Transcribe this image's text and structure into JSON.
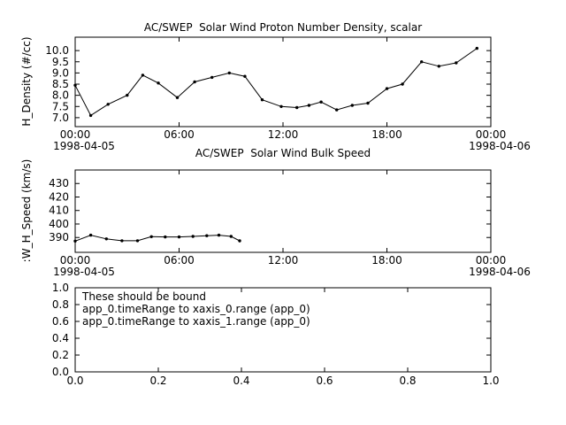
{
  "colors": {
    "background": "#ffffff",
    "foreground": "#000000"
  },
  "chart_data": [
    {
      "type": "line",
      "title": "AC/SWEP  Solar Wind Proton Number Density, scalar",
      "ylabel": "H_Density (#/cc)",
      "xlabel": "",
      "x_start_date": "1998-04-05",
      "x_end_date": "1998-04-06",
      "xlim": [
        0,
        24
      ],
      "ylim": [
        6.6,
        10.6
      ],
      "xticks": [
        0,
        6,
        12,
        18,
        24
      ],
      "xtick_labels": [
        "00:00",
        "06:00",
        "12:00",
        "18:00",
        "00:00"
      ],
      "yticks": [
        7.0,
        7.5,
        8.0,
        8.5,
        9.0,
        9.5,
        10.0
      ],
      "ytick_labels": [
        "7.0",
        "7.5",
        "8.0",
        "8.5",
        "9.0",
        "9.5",
        "10.0"
      ],
      "marker": "dot",
      "line_color": "#000000",
      "x": [
        0,
        0.9,
        1.9,
        3.0,
        3.9,
        4.8,
        5.9,
        6.9,
        7.9,
        8.9,
        9.8,
        10.8,
        11.9,
        12.8,
        13.5,
        14.2,
        15.1,
        16.0,
        16.9,
        18.0,
        18.9,
        20.0,
        21.0,
        22.0,
        23.2
      ],
      "y": [
        8.45,
        7.1,
        7.6,
        8.0,
        8.9,
        8.55,
        7.9,
        8.6,
        8.8,
        9.0,
        8.85,
        7.8,
        7.5,
        7.45,
        7.55,
        7.7,
        7.35,
        7.55,
        7.65,
        8.3,
        8.5,
        9.5,
        9.3,
        9.45,
        10.1
      ]
    },
    {
      "type": "line",
      "title": "AC/SWEP  Solar Wind Bulk Speed",
      "ylabel": ":W_H_Speed (km/s)",
      "xlabel": "",
      "x_start_date": "1998-04-05",
      "x_end_date": "1998-04-06",
      "xlim": [
        0,
        24
      ],
      "ylim": [
        379,
        440
      ],
      "xticks": [
        0,
        6,
        12,
        18,
        24
      ],
      "xtick_labels": [
        "00:00",
        "06:00",
        "12:00",
        "18:00",
        "00:00"
      ],
      "yticks": [
        390,
        400,
        410,
        420,
        430
      ],
      "ytick_labels": [
        "390",
        "400",
        "410",
        "420",
        "430"
      ],
      "marker": "dot",
      "line_color": "#000000",
      "x": [
        0,
        0.9,
        1.8,
        2.7,
        3.6,
        4.4,
        5.2,
        6.0,
        6.8,
        7.6,
        8.3,
        9.0,
        9.5
      ],
      "y": [
        387.3,
        391.7,
        389.0,
        387.6,
        387.6,
        390.6,
        390.4,
        390.4,
        390.8,
        391.3,
        391.7,
        390.8,
        387.5
      ]
    },
    {
      "type": "annotation",
      "title": "",
      "ylabel": "",
      "xlabel": "",
      "xlim": [
        0,
        1
      ],
      "ylim": [
        0,
        1
      ],
      "xticks": [
        0,
        0.2,
        0.4,
        0.6,
        0.8,
        1.0
      ],
      "xtick_labels": [
        "0.0",
        "0.2",
        "0.4",
        "0.6",
        "0.8",
        "1.0"
      ],
      "yticks": [
        0,
        0.2,
        0.4,
        0.6,
        0.8,
        1.0
      ],
      "ytick_labels": [
        "0.0",
        "0.2",
        "0.4",
        "0.6",
        "0.8",
        "1.0"
      ],
      "annotations": [
        "These should be bound",
        "app_0.timeRange to xaxis_0.range  (app_0)",
        "app_0.timeRange to xaxis_1.range  (app_0)"
      ]
    }
  ]
}
